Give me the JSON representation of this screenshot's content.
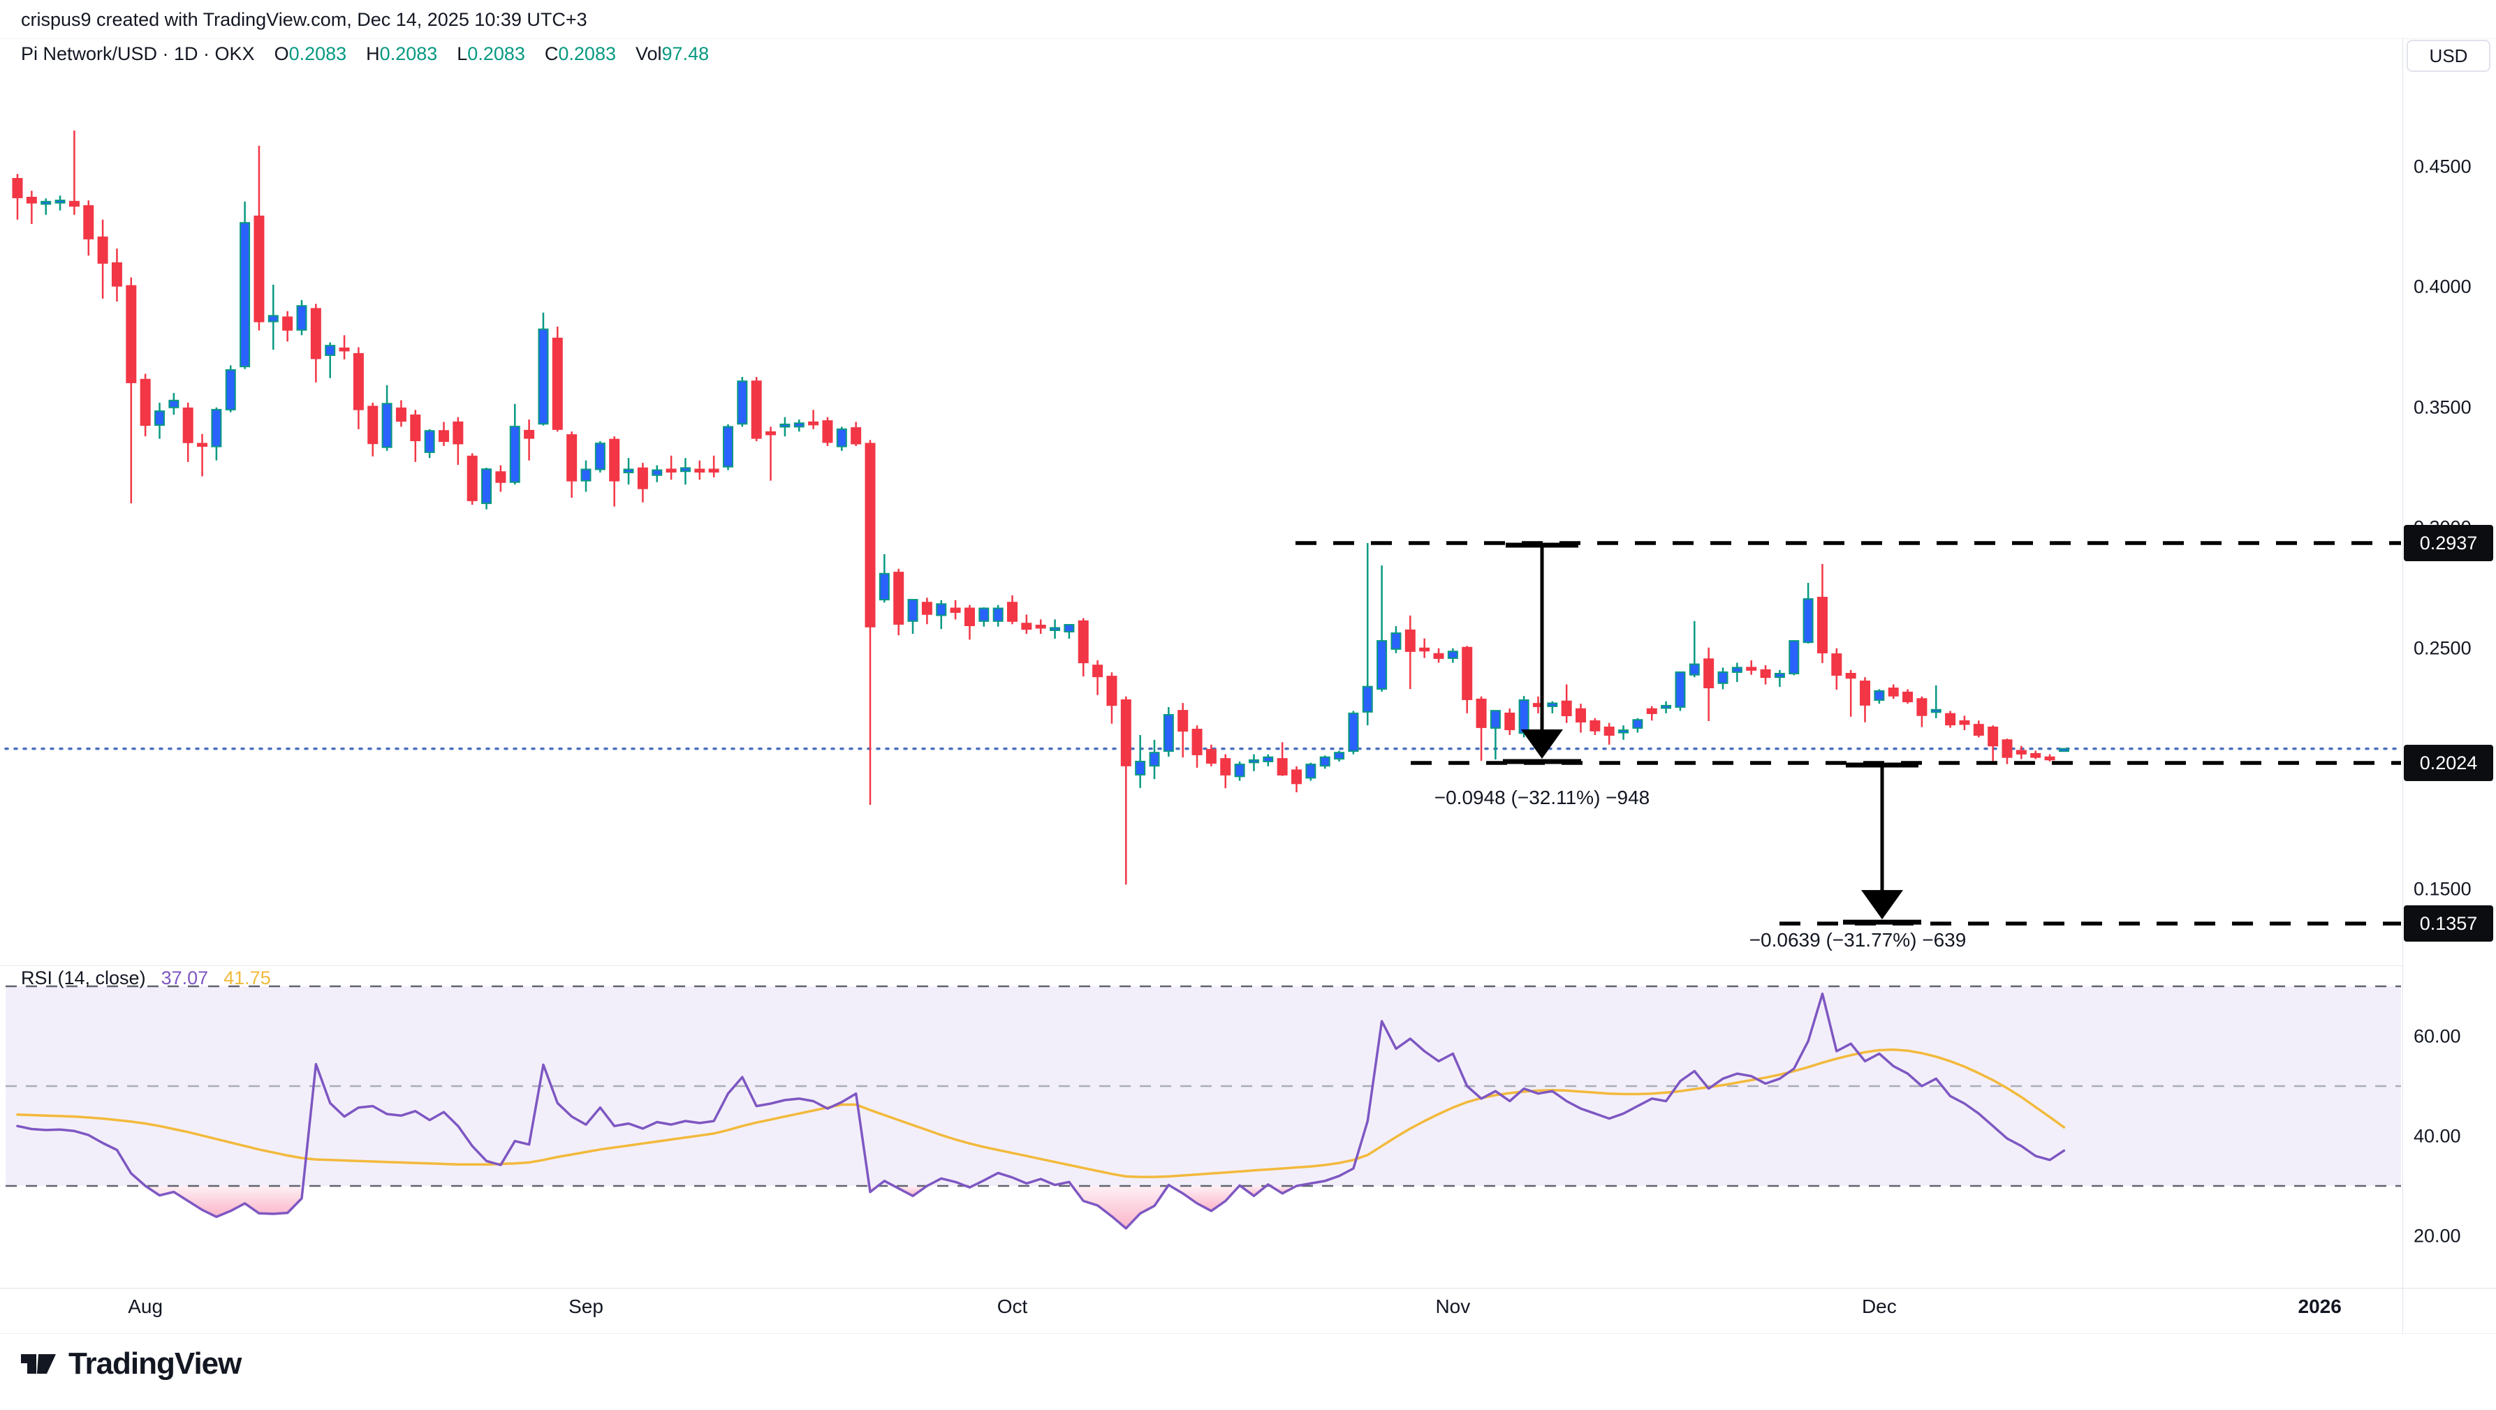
{
  "title_bar": {
    "text": "crispus9 created with TradingView.com, Dec 14, 2025 10:39 UTC+3"
  },
  "legend": {
    "symbol": "Pi Network/USD · 1D · OKX",
    "o": {
      "k": "O",
      "v": "0.2083"
    },
    "h": {
      "k": "H",
      "v": "0.2083"
    },
    "l": {
      "k": "L",
      "v": "0.2083"
    },
    "c": {
      "k": "C",
      "v": "0.2083"
    },
    "vol": {
      "k": "Vol",
      "v": "97.48"
    }
  },
  "price_axis": {
    "unit": "USD",
    "ticks": [
      {
        "label": "0.4500",
        "price": 0.45
      },
      {
        "label": "0.4000",
        "price": 0.4
      },
      {
        "label": "0.3500",
        "price": 0.35
      },
      {
        "label": "0.3000",
        "price": 0.3
      },
      {
        "label": "0.2500",
        "price": 0.25
      },
      {
        "label": "0.1500",
        "price": 0.15
      }
    ],
    "badges": [
      {
        "label": "0.2937",
        "price": 0.2937
      },
      {
        "label": "0.2024",
        "price": 0.2024
      },
      {
        "label": "0.1357",
        "price": 0.1357
      }
    ]
  },
  "rsi": {
    "label": "RSI (14, close)",
    "value": "37.07",
    "ma_value": "41.75",
    "ticks": [
      {
        "label": "60.00",
        "value": 60
      },
      {
        "label": "40.00",
        "value": 40
      },
      {
        "label": "20.00",
        "value": 20
      }
    ],
    "bands": [
      70,
      50,
      30
    ]
  },
  "footer": {
    "brand": "TradingView"
  },
  "chart_data": {
    "type": "candlestick",
    "title": "Pi Network/USD 1D OKX",
    "ylabel": "USD",
    "ylim_price_pane": [
      0.12,
      0.5
    ],
    "rsi_pane_ylim": [
      10,
      75
    ],
    "levels": {
      "swing_high": 0.2937,
      "support": 0.2024,
      "measured_target": 0.1357,
      "current_price": 0.2083
    },
    "measures": [
      {
        "text": "−0.0948 (−32.11%) −948",
        "from": 0.2937,
        "to": 0.2024
      },
      {
        "text": "−0.0639 (−31.77%) −639",
        "from": 0.2024,
        "to": 0.1357
      }
    ],
    "months": [
      {
        "label": "Aug",
        "index": 9
      },
      {
        "label": "Sep",
        "index": 40
      },
      {
        "label": "Oct",
        "index": 70
      },
      {
        "label": "Nov",
        "index": 101
      },
      {
        "label": "Dec",
        "index": 131
      },
      {
        "label": "2026",
        "index": 162,
        "year": true
      }
    ],
    "candles": [
      [
        0.445,
        0.447,
        0.428,
        0.4372
      ],
      [
        0.4372,
        0.44,
        0.4262,
        0.435
      ],
      [
        0.435,
        0.4368,
        0.43,
        0.4355
      ],
      [
        0.4355,
        0.438,
        0.4318,
        0.436
      ],
      [
        0.4355,
        0.465,
        0.43,
        0.4337
      ],
      [
        0.4337,
        0.436,
        0.4131,
        0.4201
      ],
      [
        0.4207,
        0.428,
        0.3952,
        0.41
      ],
      [
        0.41,
        0.416,
        0.394,
        0.4005
      ],
      [
        0.4005,
        0.404,
        0.3102,
        0.3604
      ],
      [
        0.3616,
        0.364,
        0.338,
        0.3427
      ],
      [
        0.3427,
        0.352,
        0.337,
        0.3485
      ],
      [
        0.35,
        0.356,
        0.347,
        0.3529
      ],
      [
        0.3497,
        0.352,
        0.3274,
        0.3355
      ],
      [
        0.335,
        0.339,
        0.3214,
        0.3345
      ],
      [
        0.3338,
        0.35,
        0.328,
        0.3491
      ],
      [
        0.3491,
        0.3675,
        0.348,
        0.3656
      ],
      [
        0.367,
        0.4355,
        0.366,
        0.4267
      ],
      [
        0.4294,
        0.4587,
        0.382,
        0.3857
      ],
      [
        0.3857,
        0.401,
        0.374,
        0.3881
      ],
      [
        0.3875,
        0.39,
        0.3774,
        0.3822
      ],
      [
        0.3822,
        0.3946,
        0.38,
        0.3922
      ],
      [
        0.391,
        0.393,
        0.3604,
        0.3704
      ],
      [
        0.3717,
        0.377,
        0.3622,
        0.3757
      ],
      [
        0.3746,
        0.38,
        0.37,
        0.374
      ],
      [
        0.3723,
        0.375,
        0.341,
        0.3492
      ],
      [
        0.3504,
        0.352,
        0.3297,
        0.3351
      ],
      [
        0.3335,
        0.3593,
        0.332,
        0.3516
      ],
      [
        0.3497,
        0.353,
        0.342,
        0.3444
      ],
      [
        0.3468,
        0.349,
        0.3274,
        0.3363
      ],
      [
        0.3314,
        0.341,
        0.329,
        0.3403
      ],
      [
        0.3403,
        0.344,
        0.334,
        0.336
      ],
      [
        0.3439,
        0.346,
        0.3262,
        0.335
      ],
      [
        0.3297,
        0.331,
        0.3096,
        0.3114
      ],
      [
        0.3102,
        0.325,
        0.3077,
        0.3244
      ],
      [
        0.3232,
        0.326,
        0.315,
        0.319
      ],
      [
        0.319,
        0.3515,
        0.318,
        0.3421
      ],
      [
        0.3404,
        0.345,
        0.328,
        0.3373
      ],
      [
        0.3432,
        0.3894,
        0.3425,
        0.3825
      ],
      [
        0.3787,
        0.3836,
        0.34,
        0.341
      ],
      [
        0.3386,
        0.34,
        0.3125,
        0.3196
      ],
      [
        0.3196,
        0.328,
        0.315,
        0.3243
      ],
      [
        0.3243,
        0.336,
        0.323,
        0.3351
      ],
      [
        0.3367,
        0.338,
        0.3089,
        0.3196
      ],
      [
        0.323,
        0.329,
        0.318,
        0.3243
      ],
      [
        0.3248,
        0.327,
        0.3106,
        0.3164
      ],
      [
        0.3219,
        0.326,
        0.319,
        0.324
      ],
      [
        0.3243,
        0.33,
        0.32,
        0.3235
      ],
      [
        0.3235,
        0.329,
        0.318,
        0.3249
      ],
      [
        0.3243,
        0.328,
        0.32,
        0.3235
      ],
      [
        0.3243,
        0.33,
        0.321,
        0.3238
      ],
      [
        0.3254,
        0.343,
        0.324,
        0.342
      ],
      [
        0.3432,
        0.3627,
        0.342,
        0.3609
      ],
      [
        0.3609,
        0.3627,
        0.336,
        0.3373
      ],
      [
        0.3398,
        0.342,
        0.3196,
        0.339
      ],
      [
        0.3421,
        0.346,
        0.338,
        0.343
      ],
      [
        0.342,
        0.345,
        0.34,
        0.3435
      ],
      [
        0.3439,
        0.349,
        0.341,
        0.343
      ],
      [
        0.3444,
        0.346,
        0.334,
        0.3356
      ],
      [
        0.3338,
        0.342,
        0.332,
        0.341
      ],
      [
        0.3415,
        0.344,
        0.334,
        0.335
      ],
      [
        0.335,
        0.3365,
        0.185,
        0.259
      ],
      [
        0.2702,
        0.2891,
        0.269,
        0.281
      ],
      [
        0.2815,
        0.283,
        0.2554,
        0.2601
      ],
      [
        0.2613,
        0.264,
        0.256,
        0.2702
      ],
      [
        0.269,
        0.271,
        0.26,
        0.2642
      ],
      [
        0.2637,
        0.27,
        0.258,
        0.2684
      ],
      [
        0.2666,
        0.27,
        0.262,
        0.265
      ],
      [
        0.2666,
        0.268,
        0.2536,
        0.2595
      ],
      [
        0.2613,
        0.267,
        0.259,
        0.2666
      ],
      [
        0.2613,
        0.268,
        0.259,
        0.2666
      ],
      [
        0.269,
        0.272,
        0.26,
        0.2613
      ],
      [
        0.2603,
        0.264,
        0.256,
        0.258
      ],
      [
        0.2595,
        0.262,
        0.256,
        0.2585
      ],
      [
        0.258,
        0.262,
        0.254,
        0.2585
      ],
      [
        0.2569,
        0.26,
        0.254,
        0.2598
      ],
      [
        0.2613,
        0.2625,
        0.2383,
        0.2441
      ],
      [
        0.2429,
        0.245,
        0.2306,
        0.2383
      ],
      [
        0.2383,
        0.24,
        0.2187,
        0.2264
      ],
      [
        0.2285,
        0.23,
        0.1519,
        0.2013
      ],
      [
        0.1975,
        0.214,
        0.192,
        0.203
      ],
      [
        0.2012,
        0.212,
        0.1957,
        0.2067
      ],
      [
        0.2073,
        0.2256,
        0.205,
        0.2224
      ],
      [
        0.2241,
        0.2273,
        0.2047,
        0.2157
      ],
      [
        0.2163,
        0.218,
        0.2004,
        0.2059
      ],
      [
        0.2079,
        0.21,
        0.201,
        0.2024
      ],
      [
        0.2041,
        0.206,
        0.1919,
        0.1975
      ],
      [
        0.1968,
        0.203,
        0.195,
        0.2018
      ],
      [
        0.203,
        0.206,
        0.199,
        0.2036
      ],
      [
        0.203,
        0.206,
        0.201,
        0.2048
      ],
      [
        0.2041,
        0.211,
        0.197,
        0.1975
      ],
      [
        0.1994,
        0.201,
        0.1902,
        0.1939
      ],
      [
        0.1962,
        0.2025,
        0.195,
        0.2018
      ],
      [
        0.2012,
        0.2055,
        0.2,
        0.2048
      ],
      [
        0.2041,
        0.2075,
        0.203,
        0.2067
      ],
      [
        0.2073,
        0.224,
        0.206,
        0.223
      ],
      [
        0.2236,
        0.2937,
        0.218,
        0.2341
      ],
      [
        0.2331,
        0.2844,
        0.232,
        0.2531
      ],
      [
        0.2497,
        0.2592,
        0.248,
        0.2563
      ],
      [
        0.2575,
        0.2636,
        0.2331,
        0.2488
      ],
      [
        0.25,
        0.2541,
        0.246,
        0.249
      ],
      [
        0.2477,
        0.25,
        0.244,
        0.2459
      ],
      [
        0.2459,
        0.25,
        0.244,
        0.2487
      ],
      [
        0.2503,
        0.251,
        0.223,
        0.2288
      ],
      [
        0.2288,
        0.23,
        0.2033,
        0.2172
      ],
      [
        0.2169,
        0.2241,
        0.2038,
        0.2241
      ],
      [
        0.223,
        0.225,
        0.214,
        0.2163
      ],
      [
        0.2148,
        0.2302,
        0.213,
        0.2285
      ],
      [
        0.227,
        0.23,
        0.223,
        0.2259
      ],
      [
        0.2259,
        0.228,
        0.223,
        0.2272
      ],
      [
        0.228,
        0.235,
        0.219,
        0.2221
      ],
      [
        0.2248,
        0.227,
        0.215,
        0.2195
      ],
      [
        0.2198,
        0.221,
        0.214,
        0.2158
      ],
      [
        0.2172,
        0.219,
        0.21,
        0.214
      ],
      [
        0.2155,
        0.218,
        0.212,
        0.216
      ],
      [
        0.2169,
        0.221,
        0.215,
        0.2203
      ],
      [
        0.2248,
        0.226,
        0.22,
        0.223
      ],
      [
        0.2259,
        0.228,
        0.223,
        0.2262
      ],
      [
        0.2256,
        0.2401,
        0.224,
        0.2401
      ],
      [
        0.239,
        0.2613,
        0.238,
        0.2434
      ],
      [
        0.2455,
        0.2503,
        0.2198,
        0.2337
      ],
      [
        0.2355,
        0.242,
        0.233,
        0.2401
      ],
      [
        0.2401,
        0.244,
        0.236,
        0.242
      ],
      [
        0.242,
        0.245,
        0.239,
        0.241
      ],
      [
        0.241,
        0.243,
        0.235,
        0.238
      ],
      [
        0.238,
        0.241,
        0.234,
        0.2395
      ],
      [
        0.2395,
        0.2531,
        0.2388,
        0.2531
      ],
      [
        0.2525,
        0.2772,
        0.252,
        0.2705
      ],
      [
        0.2711,
        0.285,
        0.2439,
        0.2482
      ],
      [
        0.2476,
        0.25,
        0.2328,
        0.2389
      ],
      [
        0.2395,
        0.241,
        0.2216,
        0.2377
      ],
      [
        0.2363,
        0.238,
        0.2193,
        0.2265
      ],
      [
        0.2285,
        0.233,
        0.227,
        0.2323
      ],
      [
        0.2334,
        0.235,
        0.229,
        0.2303
      ],
      [
        0.2317,
        0.233,
        0.227,
        0.2279
      ],
      [
        0.229,
        0.23,
        0.2173,
        0.2222
      ],
      [
        0.224,
        0.2346,
        0.221,
        0.2245
      ],
      [
        0.2228,
        0.224,
        0.217,
        0.2183
      ],
      [
        0.2198,
        0.222,
        0.216,
        0.2185
      ],
      [
        0.2183,
        0.22,
        0.213,
        0.214
      ],
      [
        0.2172,
        0.218,
        0.2032,
        0.2096
      ],
      [
        0.2119,
        0.2125,
        0.2019,
        0.2048
      ],
      [
        0.2075,
        0.2095,
        0.204,
        0.2062
      ],
      [
        0.2062,
        0.2075,
        0.204,
        0.2048
      ],
      [
        0.2048,
        0.206,
        0.203,
        0.2044
      ],
      [
        0.2083,
        0.2083,
        0.2083,
        0.2083
      ]
    ],
    "rsi_line": [
      42.0,
      41.4,
      41.2,
      41.3,
      41.0,
      40.2,
      38.6,
      37.2,
      32.5,
      30.0,
      28.1,
      28.8,
      27.0,
      25.2,
      23.8,
      25.0,
      26.5,
      24.5,
      24.4,
      24.6,
      27.5,
      54.4,
      46.6,
      43.9,
      45.7,
      46.0,
      44.4,
      44.1,
      45.0,
      43.2,
      44.8,
      42.0,
      38.0,
      35.0,
      34.2,
      39.0,
      38.3,
      54.3,
      46.6,
      43.9,
      42.3,
      45.7,
      42.0,
      42.5,
      41.5,
      42.8,
      42.3,
      43.0,
      42.6,
      43.0,
      48.5,
      51.8,
      46.0,
      46.5,
      47.2,
      47.5,
      47.0,
      45.5,
      46.8,
      48.5,
      28.8,
      31.0,
      29.5,
      28.0,
      30.0,
      31.5,
      30.8,
      29.7,
      31.1,
      32.6,
      31.7,
      30.5,
      31.4,
      30.2,
      30.8,
      27.0,
      26.1,
      23.9,
      21.5,
      24.5,
      26.0,
      30.2,
      28.5,
      26.5,
      25.0,
      27.0,
      30.1,
      28.0,
      30.3,
      28.5,
      30.0,
      30.5,
      31.0,
      32.0,
      33.5,
      43.0,
      63.0,
      57.5,
      59.5,
      57.0,
      55.0,
      56.5,
      50.0,
      47.5,
      49.0,
      47.0,
      49.5,
      48.5,
      49.0,
      47.0,
      45.5,
      44.5,
      43.5,
      44.5,
      46.0,
      47.5,
      47.0,
      51.0,
      53.0,
      49.5,
      51.5,
      52.5,
      52.0,
      50.5,
      51.5,
      53.5,
      59.0,
      68.5,
      57.0,
      58.5,
      55.0,
      56.5,
      54.0,
      52.5,
      50.0,
      51.5,
      48.0,
      46.5,
      44.5,
      42.0,
      39.5,
      38.0,
      36.0,
      35.2,
      37.07
    ],
    "rsi_ma": [
      44.3,
      44.2,
      44.1,
      44.0,
      43.9,
      43.7,
      43.5,
      43.2,
      42.9,
      42.5,
      42.0,
      41.4,
      40.8,
      40.1,
      39.4,
      38.7,
      38.0,
      37.3,
      36.7,
      36.1,
      35.6,
      35.3,
      35.2,
      35.1,
      35.0,
      34.9,
      34.8,
      34.7,
      34.6,
      34.5,
      34.4,
      34.3,
      34.3,
      34.3,
      34.4,
      34.5,
      34.7,
      35.2,
      35.8,
      36.3,
      36.8,
      37.3,
      37.7,
      38.1,
      38.5,
      38.9,
      39.3,
      39.7,
      40.1,
      40.5,
      41.2,
      42.0,
      42.7,
      43.3,
      43.9,
      44.5,
      45.1,
      45.7,
      46.3,
      46.3,
      45.2,
      44.2,
      43.2,
      42.2,
      41.2,
      40.2,
      39.3,
      38.5,
      37.8,
      37.2,
      36.6,
      36.0,
      35.4,
      34.8,
      34.2,
      33.6,
      33.0,
      32.4,
      31.9,
      31.8,
      31.8,
      31.9,
      32.1,
      32.3,
      32.5,
      32.7,
      32.9,
      33.1,
      33.3,
      33.5,
      33.7,
      33.9,
      34.2,
      34.6,
      35.2,
      36.2,
      38.0,
      39.8,
      41.5,
      43.0,
      44.4,
      45.7,
      46.8,
      47.6,
      48.2,
      48.6,
      48.9,
      49.1,
      49.2,
      49.1,
      48.9,
      48.7,
      48.5,
      48.4,
      48.4,
      48.5,
      48.7,
      49.0,
      49.4,
      49.8,
      50.2,
      50.7,
      51.2,
      51.7,
      52.3,
      53.0,
      53.8,
      54.7,
      55.5,
      56.2,
      56.8,
      57.2,
      57.3,
      57.1,
      56.6,
      55.9,
      55.0,
      53.9,
      52.6,
      51.2,
      49.6,
      47.8,
      45.8,
      43.8,
      41.75
    ],
    "colors": {
      "up_body": "#2962FF",
      "up_border": "#089981",
      "down": "#F23645",
      "rsi_line": "#7E57C2",
      "rsi_ma": "#F2B93B",
      "band_fill": "#f3effa",
      "current_line": "#4C6FBF",
      "drawing": "#000000",
      "oversold_fill": "#f4437a"
    }
  }
}
